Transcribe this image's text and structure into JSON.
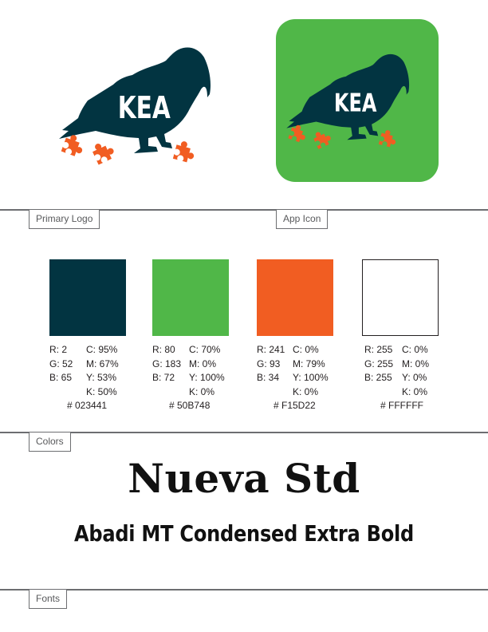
{
  "logo": {
    "wordmark": "KEA"
  },
  "sections": {
    "primary_logo": "Primary Logo",
    "app_icon": "App Icon",
    "colors": "Colors",
    "fonts": "Fonts"
  },
  "colors": [
    {
      "hex_color": "#023441",
      "rgb": [
        "R: 2",
        "G: 52",
        "B: 65"
      ],
      "cmyk": [
        "C: 95%",
        "M: 67%",
        "Y: 53%",
        "K: 50%"
      ],
      "hex_label": "# 023441"
    },
    {
      "hex_color": "#50B748",
      "rgb": [
        "R: 80",
        "G: 183",
        "B: 72"
      ],
      "cmyk": [
        "C: 70%",
        "M: 0%",
        "Y: 100%",
        "K: 0%"
      ],
      "hex_label": "# 50B748"
    },
    {
      "hex_color": "#F15D22",
      "rgb": [
        "R: 241",
        "G: 93",
        "B: 34"
      ],
      "cmyk": [
        "C: 0%",
        "M: 79%",
        "Y: 100%",
        "K: 0%"
      ],
      "hex_label": "# F15D22"
    },
    {
      "hex_color": "#FFFFFF",
      "rgb": [
        "R: 255",
        "G: 255",
        "B: 255"
      ],
      "cmyk": [
        "C: 0%",
        "M: 0%",
        "Y: 0%",
        "K: 0%"
      ],
      "hex_label": "# FFFFFF"
    }
  ],
  "fonts": {
    "primary": "Nueva Std",
    "secondary": "Abadi MT Condensed Extra Bold"
  }
}
